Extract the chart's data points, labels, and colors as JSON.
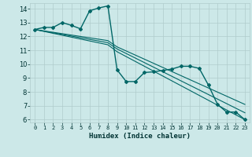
{
  "xlabel": "Humidex (Indice chaleur)",
  "bg_color": "#cce8e8",
  "grid_color": "#b0cccc",
  "line_color": "#006666",
  "xlim": [
    -0.5,
    23.5
  ],
  "ylim": [
    5.8,
    14.4
  ],
  "yticks": [
    6,
    7,
    8,
    9,
    10,
    11,
    12,
    13,
    14
  ],
  "xticks": [
    0,
    1,
    2,
    3,
    4,
    5,
    6,
    7,
    8,
    9,
    10,
    11,
    12,
    13,
    14,
    15,
    16,
    17,
    18,
    19,
    20,
    21,
    22,
    23
  ],
  "series_marker": {
    "x": [
      0,
      1,
      2,
      3,
      4,
      5,
      6,
      7,
      8,
      9,
      10,
      11,
      12,
      13,
      14,
      15,
      16,
      17,
      18,
      19,
      20,
      21,
      22,
      23
    ],
    "y": [
      12.5,
      12.65,
      12.65,
      13.0,
      12.8,
      12.55,
      13.85,
      14.05,
      14.2,
      9.6,
      8.75,
      8.75,
      9.4,
      9.45,
      9.55,
      9.65,
      9.85,
      9.85,
      9.7,
      8.5,
      7.1,
      6.55,
      6.55,
      6.0
    ]
  },
  "series_lines": [
    {
      "x": [
        0,
        8,
        9,
        23
      ],
      "y": [
        12.5,
        11.4,
        10.9,
        6.0
      ]
    },
    {
      "x": [
        0,
        8,
        9,
        23
      ],
      "y": [
        12.5,
        11.55,
        11.1,
        6.5
      ]
    },
    {
      "x": [
        0,
        8,
        9,
        23
      ],
      "y": [
        12.5,
        11.7,
        11.25,
        7.1
      ]
    }
  ]
}
